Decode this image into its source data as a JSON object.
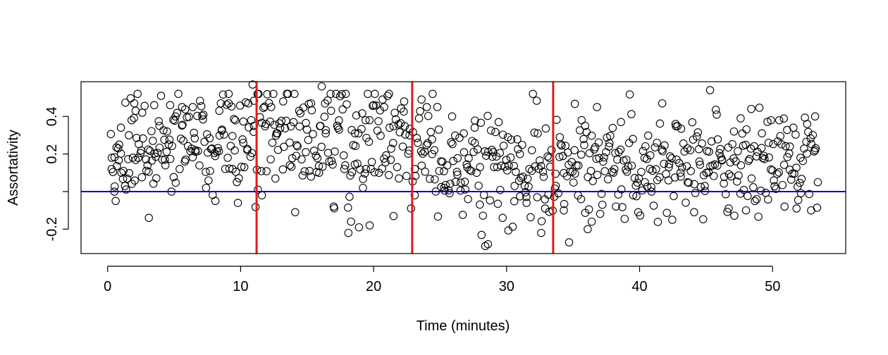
{
  "chart_data": {
    "type": "scatter",
    "title": "",
    "xlabel": "Time (minutes)",
    "ylabel": "Assortativity",
    "xlim": [
      -2,
      55.5
    ],
    "ylim": [
      -0.33,
      0.585
    ],
    "x_ticks": [
      0,
      10,
      20,
      30,
      40,
      50
    ],
    "x_tick_labels": [
      "0",
      "10",
      "20",
      "30",
      "40",
      "50"
    ],
    "y_ticks": [
      -0.2,
      0.0,
      0.2,
      0.4
    ],
    "y_tick_labels": [
      "-0.2",
      "",
      "0.2",
      "0.4"
    ],
    "grid": false,
    "legend": "none",
    "point_style": "open-circle",
    "colors": {
      "points": "#000000",
      "vlines": "#e31a1c",
      "hline": "#0000cc"
    },
    "vertical_lines_x": [
      11.2,
      22.9,
      33.5
    ],
    "horizontal_line_y": 0.0,
    "n_points": 796,
    "time_range": [
      0.2,
      53.4
    ],
    "series": [
      {
        "segments": [
          {
            "x_range": [
              0.2,
              11.1
            ],
            "trend_y": [
              0.2,
              0.32
            ],
            "spread": 0.14,
            "n": 164
          },
          {
            "x_range": [
              11.2,
              22.8
            ],
            "trend_y": [
              0.3,
              0.26
            ],
            "spread": 0.15,
            "n": 175
          },
          {
            "x_range": [
              22.9,
              33.4
            ],
            "trend_y": [
              0.22,
              0.07
            ],
            "spread": 0.15,
            "n": 158
          },
          {
            "x_range": [
              33.5,
              53.4
            ],
            "trend_y": [
              0.08,
              0.18
            ],
            "spread": 0.14,
            "n": 299
          }
        ],
        "points": [
          [
            0.3,
            0.12
          ],
          [
            0.5,
            0.0
          ],
          [
            0.6,
            -0.05
          ],
          [
            0.8,
            0.23
          ],
          [
            1.0,
            0.34
          ],
          [
            1.3,
            0.03
          ],
          [
            1.6,
            0.3
          ],
          [
            1.8,
            0.38
          ],
          [
            2.0,
            0.47
          ],
          [
            2.1,
            0.43
          ],
          [
            2.3,
            0.18
          ],
          [
            2.6,
            0.42
          ],
          [
            3.0,
            0.14
          ],
          [
            3.1,
            -0.14
          ],
          [
            3.4,
            0.27
          ],
          [
            3.5,
            0.46
          ],
          [
            3.9,
            0.35
          ],
          [
            4.3,
            0.17
          ],
          [
            4.7,
            0.46
          ],
          [
            4.8,
            0.0
          ],
          [
            5.1,
            0.4
          ],
          [
            5.6,
            0.45
          ],
          [
            5.8,
            0.16
          ],
          [
            6.4,
            0.45
          ],
          [
            6.6,
            0.22
          ],
          [
            7.2,
            0.41
          ],
          [
            7.4,
            0.02
          ],
          [
            7.7,
            0.11
          ],
          [
            8.1,
            -0.05
          ],
          [
            8.4,
            0.43
          ],
          [
            8.6,
            0.33
          ],
          [
            9.1,
            0.47
          ],
          [
            9.4,
            0.12
          ],
          [
            9.6,
            0.38
          ],
          [
            10.2,
            0.26
          ],
          [
            10.5,
            0.22
          ],
          [
            10.9,
            0.57
          ],
          [
            11.0,
            0.35
          ],
          [
            11.3,
            0.01
          ],
          [
            11.6,
            -0.02
          ],
          [
            11.9,
            0.36
          ],
          [
            12.3,
            0.45
          ],
          [
            12.7,
            0.31
          ],
          [
            13.2,
            0.48
          ],
          [
            13.7,
            0.14
          ],
          [
            14.1,
            -0.11
          ],
          [
            14.4,
            0.43
          ],
          [
            14.9,
            0.21
          ],
          [
            15.3,
            0.47
          ],
          [
            15.9,
            0.1
          ],
          [
            16.1,
            0.56
          ],
          [
            16.4,
            0.31
          ],
          [
            16.8,
            0.43
          ],
          [
            17.0,
            -0.08
          ],
          [
            17.4,
            0.33
          ],
          [
            17.8,
            0.12
          ],
          [
            18.1,
            -0.22
          ],
          [
            18.3,
            -0.16
          ],
          [
            18.6,
            0.31
          ],
          [
            18.9,
            -0.19
          ],
          [
            19.2,
            0.02
          ],
          [
            19.4,
            0.38
          ],
          [
            19.7,
            -0.18
          ],
          [
            20.0,
            0.46
          ],
          [
            20.4,
            0.1
          ],
          [
            20.8,
            0.45
          ],
          [
            21.2,
            0.34
          ],
          [
            21.5,
            -0.13
          ],
          [
            21.9,
            0.07
          ],
          [
            22.3,
            0.48
          ],
          [
            22.7,
            0.3
          ],
          [
            23.1,
            0.12
          ],
          [
            23.6,
            0.49
          ],
          [
            24.0,
            0.45
          ],
          [
            24.4,
            0.2
          ],
          [
            24.9,
            0.33
          ],
          [
            25.3,
            0.02
          ],
          [
            25.9,
            0.4
          ],
          [
            26.3,
            0.09
          ],
          [
            26.8,
            0.21
          ],
          [
            27.1,
            -0.04
          ],
          [
            27.6,
            0.34
          ],
          [
            28.0,
            0.13
          ],
          [
            28.4,
            -0.29
          ],
          [
            28.6,
            -0.28
          ],
          [
            29.0,
            0.21
          ],
          [
            29.4,
            0.37
          ],
          [
            29.7,
            -0.14
          ],
          [
            30.1,
            0.29
          ],
          [
            30.6,
            0.03
          ],
          [
            31.0,
            0.2
          ],
          [
            31.5,
            -0.06
          ],
          [
            31.9,
            0.22
          ],
          [
            32.3,
            -0.03
          ],
          [
            32.6,
            -0.22
          ],
          [
            32.9,
            -0.09
          ],
          [
            33.2,
            0.18
          ],
          [
            33.7,
            0.03
          ],
          [
            34.0,
            0.29
          ],
          [
            34.3,
            -0.1
          ],
          [
            34.7,
            -0.27
          ],
          [
            35.1,
            0.22
          ],
          [
            35.6,
            -0.04
          ],
          [
            35.9,
            0.35
          ],
          [
            36.1,
            -0.2
          ],
          [
            36.4,
            -0.16
          ],
          [
            36.8,
            0.45
          ],
          [
            37.2,
            -0.07
          ],
          [
            37.7,
            0.24
          ],
          [
            38.1,
            0.12
          ],
          [
            38.6,
            0.37
          ],
          [
            39.0,
            0.17
          ],
          [
            39.5,
            0.28
          ],
          [
            39.9,
            -0.11
          ],
          [
            40.4,
            0.05
          ],
          [
            40.9,
            0.0
          ],
          [
            41.3,
            0.26
          ],
          [
            41.7,
            0.47
          ],
          [
            42.2,
            0.13
          ],
          [
            42.7,
            0.36
          ],
          [
            43.1,
            0.08
          ],
          [
            43.6,
            0.23
          ],
          [
            44.1,
            -0.11
          ],
          [
            44.5,
            0.16
          ],
          [
            44.9,
            0.03
          ],
          [
            45.3,
            0.54
          ],
          [
            45.8,
            0.41
          ],
          [
            46.2,
            0.17
          ],
          [
            46.7,
            -0.09
          ],
          [
            47.1,
            0.32
          ],
          [
            47.6,
            0.39
          ],
          [
            48.0,
            -0.1
          ],
          [
            48.4,
            0.44
          ],
          [
            48.8,
            -0.04
          ],
          [
            49.2,
            0.31
          ],
          [
            49.7,
            0.26
          ],
          [
            50.1,
            0.06
          ],
          [
            50.5,
            0.38
          ],
          [
            50.9,
            -0.08
          ],
          [
            51.3,
            0.24
          ],
          [
            51.8,
            -0.09
          ],
          [
            52.1,
            0.18
          ],
          [
            52.6,
            0.36
          ],
          [
            52.9,
            -0.1
          ],
          [
            53.2,
            0.22
          ],
          [
            53.4,
            0.05
          ]
        ]
      }
    ]
  }
}
